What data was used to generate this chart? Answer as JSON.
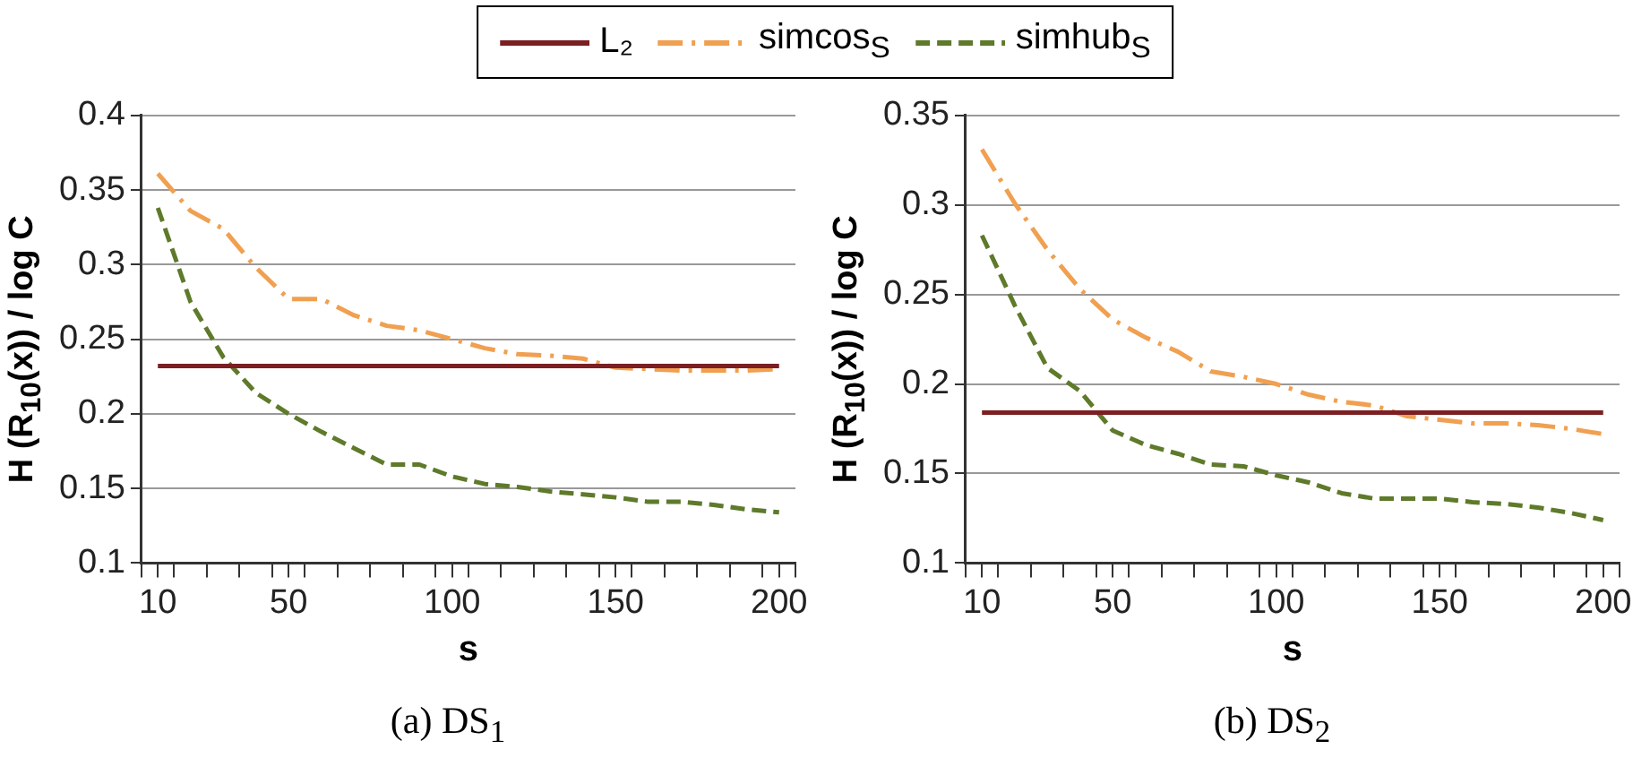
{
  "chart_data": [
    {
      "type": "line",
      "xlabel": "s",
      "ylabel": "H (R$_{10}$(x))  /  log C",
      "annotations": [
        "(a)  DS$_{1}$"
      ],
      "legend": "top",
      "grid": "y",
      "marker": "none",
      "x": [
        10,
        20,
        30,
        40,
        50,
        60,
        70,
        80,
        90,
        100,
        110,
        120,
        130,
        140,
        150,
        160,
        170,
        180,
        190,
        200
      ],
      "xlim": [
        5,
        205
      ],
      "xticks": [
        {
          "value": 5,
          "label": null
        },
        10,
        {
          "value": 15,
          "label": null
        },
        {
          "value": 25,
          "label": null
        },
        {
          "value": 35,
          "label": null
        },
        {
          "value": 45,
          "label": null
        },
        50,
        {
          "value": 55,
          "label": null
        },
        {
          "value": 65,
          "label": null
        },
        {
          "value": 75,
          "label": null
        },
        {
          "value": 85,
          "label": null
        },
        {
          "value": 95,
          "label": null
        },
        100,
        {
          "value": 105,
          "label": null
        },
        {
          "value": 115,
          "label": null
        },
        {
          "value": 125,
          "label": null
        },
        {
          "value": 135,
          "label": null
        },
        {
          "value": 145,
          "label": null
        },
        150,
        {
          "value": 155,
          "label": null
        },
        {
          "value": 165,
          "label": null
        },
        {
          "value": 175,
          "label": null
        },
        {
          "value": 185,
          "label": null
        },
        {
          "value": 195,
          "label": null
        },
        200,
        {
          "value": 205,
          "label": null
        }
      ],
      "ylim": [
        0.1,
        0.4
      ],
      "yticks": [
        0.1,
        0.15,
        0.2,
        0.25,
        0.3,
        0.35,
        0.4
      ],
      "series": [
        {
          "name": "L₂",
          "color": "#7b1f22",
          "line_style": "solid",
          "values": [
            0.232,
            0.232,
            0.232,
            0.232,
            0.232,
            0.232,
            0.232,
            0.232,
            0.232,
            0.232,
            0.232,
            0.232,
            0.232,
            0.232,
            0.232,
            0.232,
            0.232,
            0.232,
            0.232,
            0.232
          ]
        },
        {
          "name": "simcos$_{S}$",
          "color": "#f0a050",
          "line_style": "dashdot",
          "values": [
            0.361,
            0.336,
            0.324,
            0.298,
            0.277,
            0.277,
            0.266,
            0.259,
            0.256,
            0.25,
            0.244,
            0.24,
            0.239,
            0.237,
            0.231,
            0.23,
            0.229,
            0.229,
            0.229,
            0.23
          ]
        },
        {
          "name": "simhub$_{S}$",
          "color": "#5e7a2a",
          "line_style": "dashed",
          "values": [
            0.338,
            0.275,
            0.238,
            0.214,
            0.2,
            0.188,
            0.177,
            0.166,
            0.166,
            0.158,
            0.153,
            0.151,
            0.148,
            0.146,
            0.144,
            0.141,
            0.141,
            0.139,
            0.136,
            0.134
          ]
        }
      ]
    },
    {
      "type": "line",
      "xlabel": "s",
      "ylabel": "H (R$_{10}$(x))  /  log C",
      "annotations": [
        "(b)  DS$_{2}$"
      ],
      "grid": "y",
      "marker": "none",
      "x": [
        10,
        20,
        30,
        40,
        50,
        60,
        70,
        80,
        90,
        100,
        110,
        120,
        130,
        140,
        150,
        160,
        170,
        180,
        190,
        200
      ],
      "xlim": [
        5,
        205
      ],
      "xticks": [
        {
          "value": 5,
          "label": null
        },
        10,
        {
          "value": 15,
          "label": null
        },
        {
          "value": 25,
          "label": null
        },
        {
          "value": 35,
          "label": null
        },
        {
          "value": 45,
          "label": null
        },
        50,
        {
          "value": 55,
          "label": null
        },
        {
          "value": 65,
          "label": null
        },
        {
          "value": 75,
          "label": null
        },
        {
          "value": 85,
          "label": null
        },
        {
          "value": 95,
          "label": null
        },
        100,
        {
          "value": 105,
          "label": null
        },
        {
          "value": 115,
          "label": null
        },
        {
          "value": 125,
          "label": null
        },
        {
          "value": 135,
          "label": null
        },
        {
          "value": 145,
          "label": null
        },
        150,
        {
          "value": 155,
          "label": null
        },
        {
          "value": 165,
          "label": null
        },
        {
          "value": 175,
          "label": null
        },
        {
          "value": 185,
          "label": null
        },
        {
          "value": 195,
          "label": null
        },
        200,
        {
          "value": 205,
          "label": null
        }
      ],
      "ylim": [
        0.1,
        0.35
      ],
      "yticks": [
        0.1,
        0.15,
        0.2,
        0.25,
        0.3,
        0.35
      ],
      "series": [
        {
          "color": "#7b1f22",
          "line_style": "solid",
          "values": [
            0.184,
            0.184,
            0.184,
            0.184,
            0.184,
            0.184,
            0.184,
            0.184,
            0.184,
            0.184,
            0.184,
            0.184,
            0.184,
            0.184,
            0.184,
            0.184,
            0.184,
            0.184,
            0.184,
            0.184
          ]
        },
        {
          "color": "#f0a050",
          "line_style": "dashdot",
          "values": [
            0.331,
            0.301,
            0.275,
            0.253,
            0.236,
            0.226,
            0.218,
            0.207,
            0.204,
            0.2,
            0.194,
            0.19,
            0.188,
            0.182,
            0.18,
            0.178,
            0.178,
            0.177,
            0.175,
            0.172
          ]
        },
        {
          "color": "#5e7a2a",
          "line_style": "dashed",
          "values": [
            0.283,
            0.244,
            0.209,
            0.196,
            0.174,
            0.166,
            0.161,
            0.155,
            0.154,
            0.149,
            0.145,
            0.139,
            0.136,
            0.136,
            0.136,
            0.134,
            0.133,
            0.131,
            0.128,
            0.124
          ]
        }
      ]
    }
  ]
}
